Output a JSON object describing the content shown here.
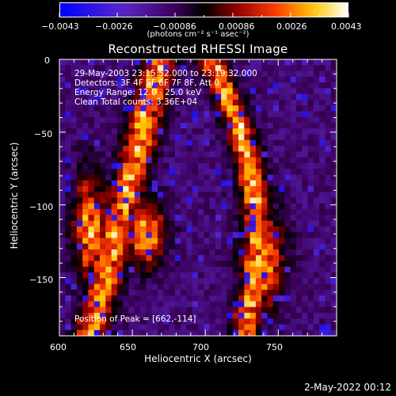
{
  "chart_data": {
    "type": "heatmap",
    "title": "Reconstructed RHESSI Image",
    "xlabel": "Heliocentric X (arcsec)",
    "ylabel": "Heliocentric Y (arcsec)",
    "xlim": [
      600,
      790
    ],
    "ylim": [
      -190,
      0
    ],
    "x_ticks": [
      "600",
      "650",
      "700",
      "750"
    ],
    "x_tick_values": [
      600,
      650,
      700,
      750
    ],
    "y_ticks": [
      "0",
      "−50",
      "−100",
      "−150"
    ],
    "y_tick_values": [
      0,
      -50,
      -100,
      -150
    ],
    "colorbar": {
      "ticks": [
        "−0.0043",
        "−0.0026",
        "−0.00086",
        "0.00086",
        "0.0026",
        "0.0043"
      ],
      "units": "(photons cm⁻² s⁻¹ asec⁻²)",
      "range": [
        -0.0043,
        0.0043
      ]
    },
    "annotations": {
      "time": "29-May-2003 23:15:52.000 to 23:19:32.000",
      "detectors": "Detectors: 3F 4F 5F 6F 7F 8F, Att 0",
      "energy": "Energy Range: 12.0 - 25.0 keV",
      "clean": "Clean     Total counts: 3.36E+04",
      "peak": "Position of Peak = [662,-114]"
    },
    "peak_position": [
      662,
      -114
    ]
  },
  "timestamp": "2-May-2022 00:12"
}
